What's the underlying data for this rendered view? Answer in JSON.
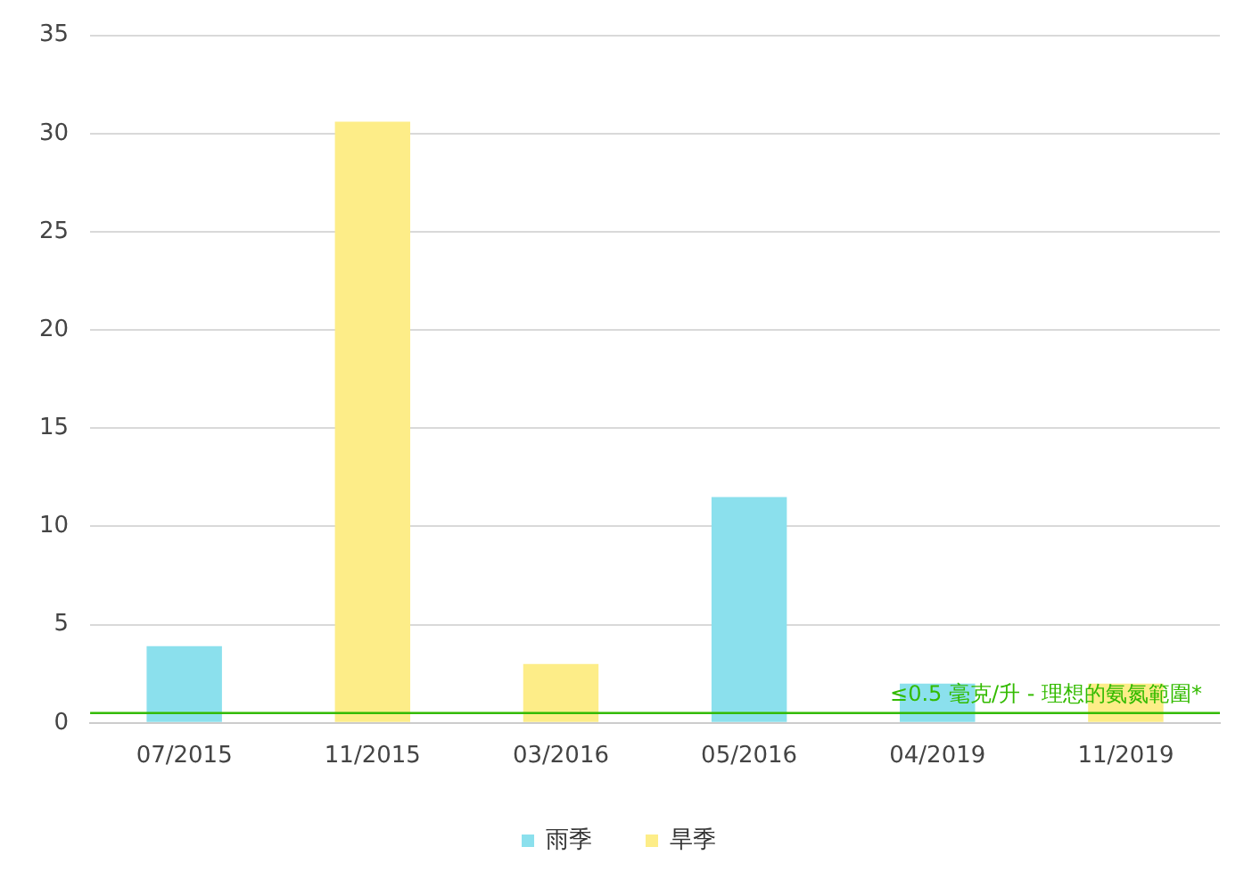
{
  "chart_data": {
    "type": "bar",
    "stacked": true,
    "categories": [
      "07/2015",
      "11/2015",
      "03/2016",
      "05/2016",
      "04/2019",
      "11/2019"
    ],
    "series": [
      {
        "name": "雨季",
        "color": "#8be0ed",
        "values": [
          3.9,
          null,
          null,
          11.5,
          2.0,
          null
        ]
      },
      {
        "name": "旱季",
        "color": "#fded88",
        "values": [
          null,
          30.6,
          3.0,
          null,
          null,
          2.0
        ]
      }
    ],
    "ylim": [
      0,
      35
    ],
    "yticks": [
      0,
      5,
      10,
      15,
      20,
      25,
      30,
      35
    ],
    "grid": "y",
    "legend": "bottom",
    "ref_lines": [
      {
        "axis": "y",
        "value": 0.5,
        "label": "≤0.5 毫克/升 - 理想的氨氮範圍*",
        "color": "#33bb00"
      }
    ]
  }
}
